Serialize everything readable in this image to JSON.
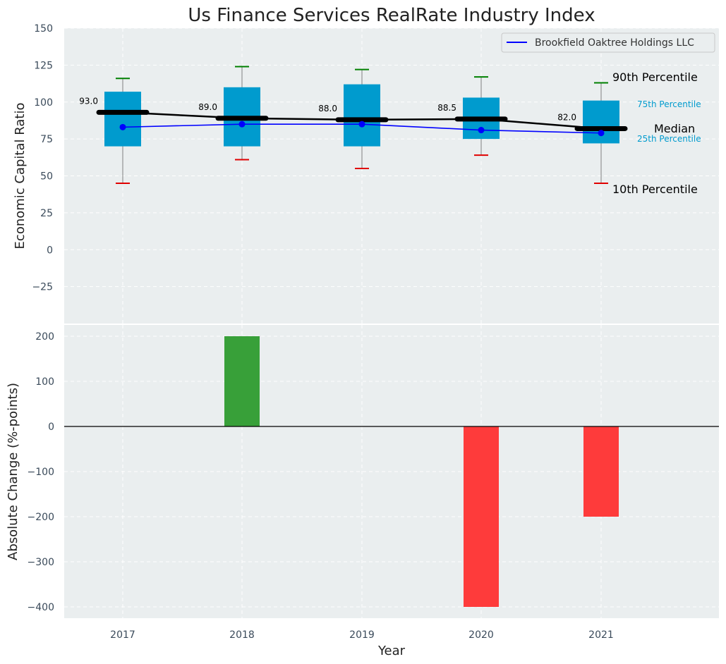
{
  "title": "Us Finance Services RealRate Industry Index",
  "colors": {
    "panel_bg": "#EAEEEF",
    "box": "#009BCE",
    "series": "#0000FF",
    "median": "#000000",
    "p90_cap": "#008000",
    "p10_cap": "#E00000",
    "bar_positive": "#2E9B2E",
    "bar_negative": "#FF3030",
    "pct_label": "#009BCE",
    "axis_text": "#3A4A5A"
  },
  "chart_data": [
    {
      "type": "box",
      "ylabel": "Economic Capital Ratio",
      "ylim": [
        -50,
        150
      ],
      "yticks": [
        -25,
        0,
        25,
        50,
        75,
        100,
        125,
        150
      ],
      "ytick_labels": [
        "−25",
        "0",
        "25",
        "50",
        "75",
        "100",
        "125",
        "150"
      ],
      "categories": [
        "2017",
        "2018",
        "2019",
        "2020",
        "2021"
      ],
      "p10": [
        45,
        61,
        55,
        64,
        45
      ],
      "p25": [
        70,
        70,
        70,
        75,
        72
      ],
      "median": [
        93.0,
        89.0,
        88.0,
        88.5,
        82.0
      ],
      "median_labels": [
        "93.0",
        "89.0",
        "88.0",
        "88.5",
        "82.0"
      ],
      "p75": [
        107,
        110,
        112,
        103,
        101
      ],
      "p90": [
        116,
        124,
        122,
        117,
        113
      ],
      "series": [
        {
          "name": "Brookfield Oaktree Holdings LLC",
          "values": [
            83,
            85,
            85,
            81,
            79
          ]
        }
      ],
      "legend": {
        "position": "top-right"
      },
      "percentile_labels": {
        "p90": "90th Percentile",
        "p75": "75th Percentile",
        "median": "Median",
        "p25": "25th Percentile",
        "p10": "10th Percentile"
      },
      "grid": true
    },
    {
      "type": "bar",
      "ylabel": "Absolute Change (%-points)",
      "xlabel": "Year",
      "ylim": [
        -425,
        225
      ],
      "yticks": [
        -400,
        -300,
        -200,
        -100,
        0,
        100,
        200
      ],
      "ytick_labels": [
        "−400",
        "−300",
        "−200",
        "−100",
        "0",
        "100",
        "200"
      ],
      "categories": [
        "2017",
        "2018",
        "2019",
        "2020",
        "2021"
      ],
      "values": [
        0,
        200,
        0,
        -400,
        -200
      ],
      "grid": true
    }
  ]
}
